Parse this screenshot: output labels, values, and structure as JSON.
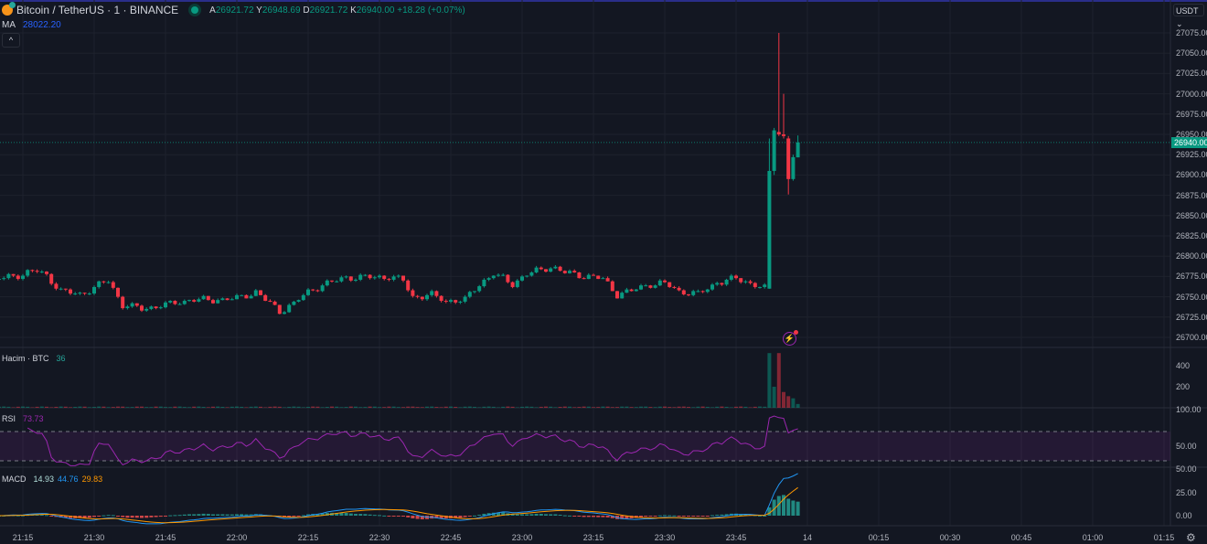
{
  "header": {
    "symbol": "Bitcoin / TetherUS · 1 · BINANCE",
    "ohlc": {
      "open_label": "A",
      "open": "26921.72",
      "high_label": "Y",
      "high": "26948.69",
      "low_label": "D",
      "low": "26921.72",
      "close_label": "K",
      "close": "26940.00",
      "change": "+18.28 (+0.07%)"
    },
    "ma_label": "MA",
    "ma_value": "28022.20",
    "collapse_icon": "chevron-up-icon"
  },
  "currency": "USDT",
  "price_axis": [
    "27075.00",
    "27050.00",
    "27025.00",
    "27000.00",
    "26975.00",
    "26950.00",
    "26925.00",
    "26900.00",
    "26875.00",
    "26850.00",
    "26825.00",
    "26800.00",
    "26775.00",
    "26750.00",
    "26725.00",
    "26700.00"
  ],
  "last_price": "26940.00",
  "volume": {
    "label": "Hacim · BTC",
    "value": "36",
    "axis": [
      "400",
      "200"
    ]
  },
  "rsi": {
    "label": "RSI",
    "value": "73.73",
    "axis": [
      "100.00",
      "50.00"
    ],
    "upper": 70,
    "lower": 30
  },
  "macd": {
    "label": "MACD",
    "hist": "14.93",
    "macd": "44.76",
    "signal": "29.83",
    "axis": [
      "50.00",
      "25.00",
      "0.00"
    ]
  },
  "time_axis": [
    "21:15",
    "21:30",
    "21:45",
    "22:00",
    "22:15",
    "22:30",
    "22:45",
    "23:00",
    "23:15",
    "23:30",
    "23:45",
    "14",
    "00:15",
    "00:30",
    "00:45",
    "01:00",
    "01:15"
  ],
  "colors": {
    "up": "#089981",
    "down": "#f23645",
    "rsi": "#9c27b0",
    "macd": "#2962ff",
    "signal": "#ff6d00",
    "background": "#131722"
  },
  "chart_data": {
    "type": "candlestick",
    "interval": "1m",
    "ylim": [
      26690,
      27085
    ],
    "close_path": [
      [
        "21:10",
        26772
      ],
      [
        "21:15",
        26778
      ],
      [
        "21:18",
        26782
      ],
      [
        "21:20",
        26776
      ],
      [
        "21:23",
        26757
      ],
      [
        "21:27",
        26753
      ],
      [
        "21:30",
        26761
      ],
      [
        "21:33",
        26770
      ],
      [
        "21:36",
        26740
      ],
      [
        "21:40",
        26735
      ],
      [
        "21:45",
        26740
      ],
      [
        "21:50",
        26746
      ],
      [
        "21:55",
        26746
      ],
      [
        "22:00",
        26748
      ],
      [
        "22:04",
        26756
      ],
      [
        "22:09",
        26732
      ],
      [
        "22:12",
        26742
      ],
      [
        "22:15",
        26756
      ],
      [
        "22:18",
        26765
      ],
      [
        "22:23",
        26774
      ],
      [
        "22:28",
        26774
      ],
      [
        "22:32",
        26775
      ],
      [
        "22:35",
        26770
      ],
      [
        "22:37",
        26750
      ],
      [
        "22:41",
        26752
      ],
      [
        "22:44",
        26745
      ],
      [
        "22:48",
        26746
      ],
      [
        "22:51",
        26766
      ],
      [
        "22:54",
        26778
      ],
      [
        "22:58",
        26766
      ],
      [
        "23:01",
        26778
      ],
      [
        "23:06",
        26787
      ],
      [
        "23:09",
        26780
      ],
      [
        "23:14",
        26775
      ],
      [
        "23:17",
        26772
      ],
      [
        "23:20",
        26753
      ],
      [
        "23:23",
        26757
      ],
      [
        "23:27",
        26766
      ],
      [
        "23:30",
        26766
      ],
      [
        "23:33",
        26757
      ],
      [
        "23:37",
        26753
      ],
      [
        "23:41",
        26768
      ],
      [
        "23:45",
        26772
      ],
      [
        "23:48",
        26767
      ],
      [
        "23:51",
        26760
      ]
    ],
    "spike_candles": [
      {
        "t": "23:52",
        "o": 26760,
        "h": 26945,
        "l": 26760,
        "c": 26905,
        "v": 520
      },
      {
        "t": "23:53",
        "o": 26905,
        "h": 26958,
        "l": 26900,
        "c": 26955,
        "v": 200
      },
      {
        "t": "23:54",
        "o": 26953,
        "h": 27075,
        "l": 26948,
        "c": 26950,
        "v": 520
      },
      {
        "t": "23:55",
        "o": 26950,
        "h": 27000,
        "l": 26945,
        "c": 26948,
        "v": 150
      },
      {
        "t": "23:56",
        "o": 26945,
        "h": 26948,
        "l": 26876,
        "c": 26895,
        "v": 110
      },
      {
        "t": "23:57",
        "o": 26895,
        "h": 26925,
        "l": 26893,
        "c": 26922,
        "v": 90
      },
      {
        "t": "23:58",
        "o": 26921.72,
        "h": 26948.69,
        "l": 26921.72,
        "c": 26940,
        "v": 36
      }
    ]
  }
}
